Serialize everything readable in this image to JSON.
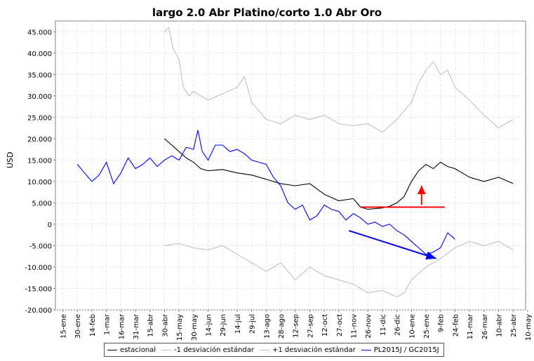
{
  "chart_data": {
    "type": "line",
    "title": "largo 2.0 Abr Platino/corto 1.0 Abr Oro",
    "xlabel": "",
    "ylabel": "USD",
    "ylim": [
      -20000,
      47500
    ],
    "yticks": [
      -20000,
      -15000,
      -10000,
      -5000,
      0,
      5000,
      10000,
      15000,
      20000,
      25000,
      30000,
      35000,
      40000,
      45000
    ],
    "ytick_labels": [
      "-20.000",
      "-15.000",
      "-10.000",
      "-5.000",
      "0",
      "5.000",
      "10.000",
      "15.000",
      "20.000",
      "25.000",
      "30.000",
      "35.000",
      "40.000",
      "45.000"
    ],
    "xtick_labels": [
      "15-ene",
      "30-ene",
      "14-feb",
      "1-mar",
      "16-mar",
      "31-mar",
      "15-abr",
      "30-abr",
      "15-may",
      "30-may",
      "14-jun",
      "29-jun",
      "14-jul",
      "29-jul",
      "13-ago",
      "28-ago",
      "12-sep",
      "27-sep",
      "12-oct",
      "27-oct",
      "11-nov",
      "26-nov",
      "11-dic",
      "26-dic",
      "10-ene",
      "25-ene",
      "9-feb",
      "24-feb",
      "11-mar",
      "26-mar",
      "10-abr",
      "25-abr",
      "10-may"
    ],
    "grid": true,
    "legend_position": "bottom",
    "series": [
      {
        "name": "estacional",
        "color": "#000000",
        "x": [
          7.0,
          7.5,
          8.0,
          8.5,
          9.0,
          9.5,
          10.0,
          11.0,
          12.0,
          13.0,
          14.0,
          15.0,
          16.0,
          17.0,
          18.0,
          19.0,
          20.0,
          20.5,
          21.0,
          22.0,
          22.5,
          23.0,
          23.5,
          24.0,
          24.5,
          25.0,
          25.5,
          26.0,
          26.5,
          27.0,
          28.0,
          29.0,
          30.0,
          31.0
        ],
        "y": [
          20000,
          18500,
          17000,
          15500,
          14500,
          13000,
          12500,
          12800,
          12000,
          11500,
          10500,
          9500,
          9000,
          9500,
          7000,
          5500,
          6000,
          4000,
          3500,
          3800,
          4200,
          5000,
          6500,
          10000,
          12500,
          14000,
          13000,
          14500,
          13500,
          13000,
          11000,
          10000,
          11000,
          9500
        ]
      },
      {
        "name": "-1 desviación estándar",
        "color": "#c0c0c0",
        "x": [
          7.0,
          8.0,
          9.0,
          10.0,
          11.0,
          12.0,
          13.0,
          14.0,
          15.0,
          16.0,
          17.0,
          18.0,
          19.0,
          20.0,
          21.0,
          22.0,
          23.0,
          23.5,
          24.0,
          25.0,
          26.0,
          27.0,
          28.0,
          29.0,
          30.0,
          31.0
        ],
        "y": [
          -5000,
          -4500,
          -5500,
          -6000,
          -5000,
          -7000,
          -9000,
          -11000,
          -9000,
          -13000,
          -10000,
          -12000,
          -13000,
          -14000,
          -16000,
          -15500,
          -17000,
          -16000,
          -13000,
          -10000,
          -8000,
          -5500,
          -4000,
          -5000,
          -4000,
          -6000
        ]
      },
      {
        "name": "+1 desviación estándar",
        "color": "#c0c0c0",
        "x": [
          7.0,
          7.3,
          7.6,
          8.0,
          8.3,
          8.7,
          9.0,
          10.0,
          11.0,
          12.0,
          12.5,
          13.0,
          14.0,
          15.0,
          16.0,
          17.0,
          18.0,
          19.0,
          20.0,
          21.0,
          22.0,
          23.0,
          24.0,
          24.5,
          25.0,
          25.5,
          26.0,
          26.5,
          27.0,
          28.0,
          29.0,
          30.0,
          31.0
        ],
        "y": [
          45000,
          46000,
          41000,
          38500,
          32000,
          30000,
          31000,
          29000,
          30500,
          32000,
          34500,
          28500,
          24500,
          23500,
          25500,
          24500,
          25500,
          23500,
          23000,
          23500,
          21500,
          24500,
          28500,
          33000,
          36000,
          38000,
          35000,
          36000,
          32000,
          29000,
          25500,
          22500,
          24500
        ]
      },
      {
        "name": "PL2015J / GC2015J",
        "color": "#0000ff",
        "x": [
          1.0,
          1.5,
          2.0,
          2.5,
          3.0,
          3.5,
          4.0,
          4.5,
          5.0,
          5.5,
          6.0,
          6.5,
          7.0,
          7.5,
          8.0,
          8.5,
          9.0,
          9.3,
          9.6,
          10.0,
          10.5,
          11.0,
          11.5,
          12.0,
          12.5,
          13.0,
          13.5,
          14.0,
          14.5,
          15.0,
          15.5,
          16.0,
          16.5,
          17.0,
          17.5,
          18.0,
          18.5,
          19.0,
          19.5,
          20.0,
          20.5,
          21.0,
          21.5,
          22.0,
          22.5,
          23.0,
          23.5,
          24.0,
          24.5,
          25.0,
          25.5,
          26.0,
          26.5,
          27.0
        ],
        "y": [
          14000,
          12000,
          10000,
          11500,
          14500,
          9500,
          12000,
          15500,
          13000,
          14000,
          15500,
          13500,
          15000,
          16000,
          15000,
          18000,
          17500,
          22000,
          17000,
          15000,
          18500,
          18500,
          17000,
          17500,
          16500,
          15000,
          14500,
          14000,
          11000,
          9000,
          5000,
          3500,
          4500,
          1000,
          2000,
          4500,
          3500,
          3000,
          1000,
          2500,
          1500,
          0,
          500,
          -500,
          0,
          -1500,
          -2500,
          -4000,
          -5500,
          -7000,
          -6500,
          -5500,
          -2000,
          -3500
        ]
      }
    ],
    "annotations": {
      "red_line": {
        "x": [
          20.5,
          26.3
        ],
        "y": [
          4000,
          4000
        ],
        "color": "#ff0000"
      },
      "red_arrow": {
        "x": [
          24.7,
          24.7
        ],
        "y": [
          4500,
          9000
        ],
        "color": "#ff0000"
      },
      "blue_arrow": {
        "x": [
          19.7,
          25.7
        ],
        "y": [
          -1500,
          -8000
        ],
        "color": "#0000ff"
      }
    }
  }
}
